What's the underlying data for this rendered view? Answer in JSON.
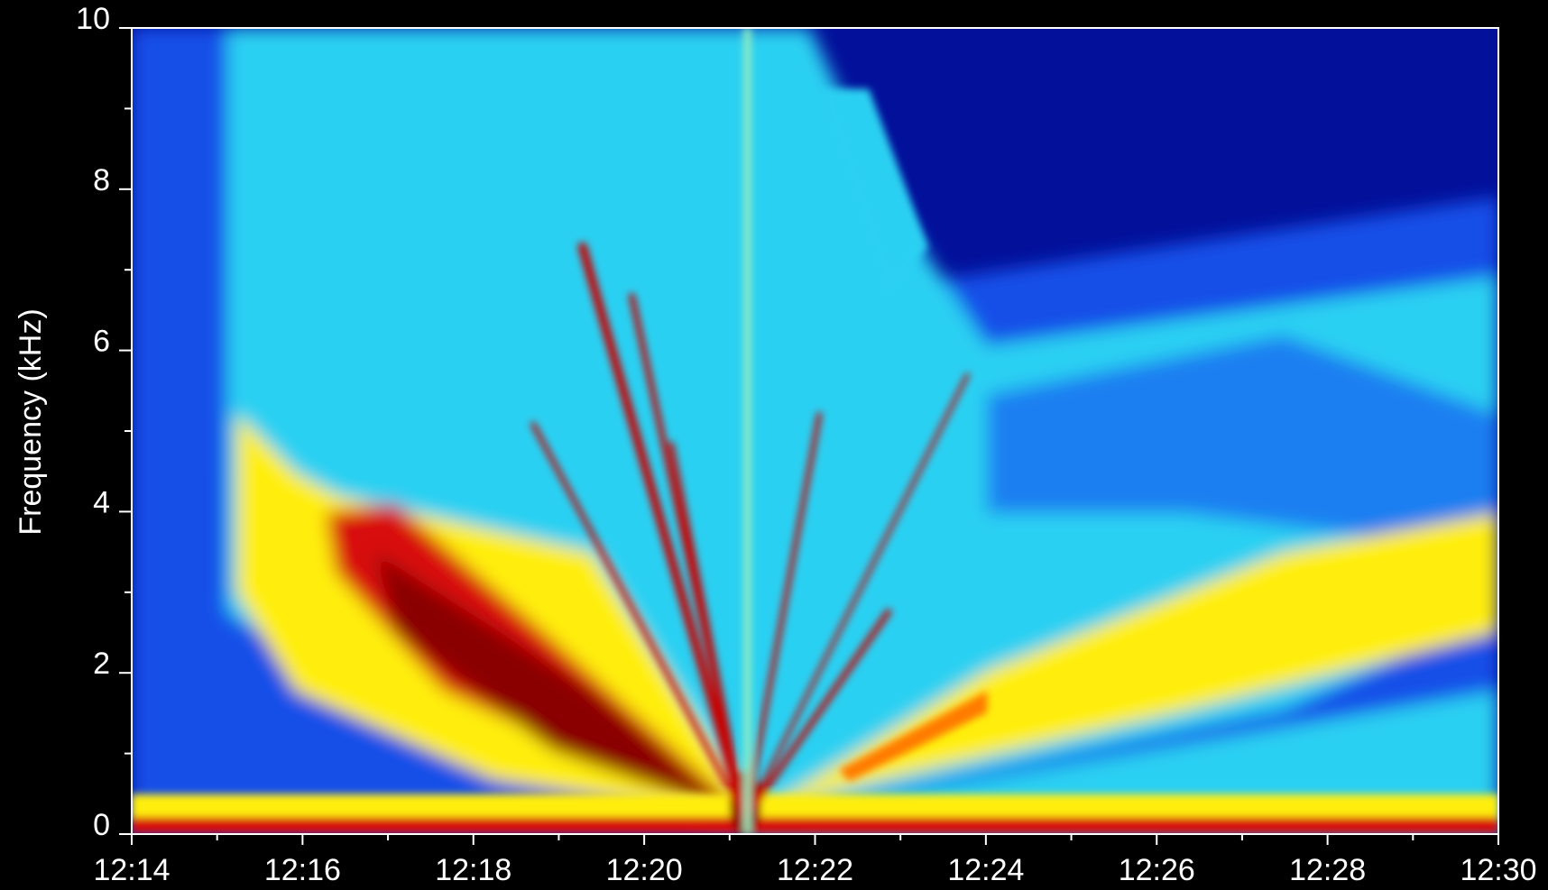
{
  "chart_data": {
    "type": "spectrogram",
    "ylabel": "Frequency (kHz)",
    "xlim": [
      "12:14",
      "12:30"
    ],
    "xticks": [
      "12:14",
      "12:16",
      "12:18",
      "12:20",
      "12:22",
      "12:24",
      "12:26",
      "12:28",
      "12:30"
    ],
    "ylim": [
      0,
      10
    ],
    "yticks": [
      0,
      2,
      4,
      6,
      8,
      10
    ]
  }
}
